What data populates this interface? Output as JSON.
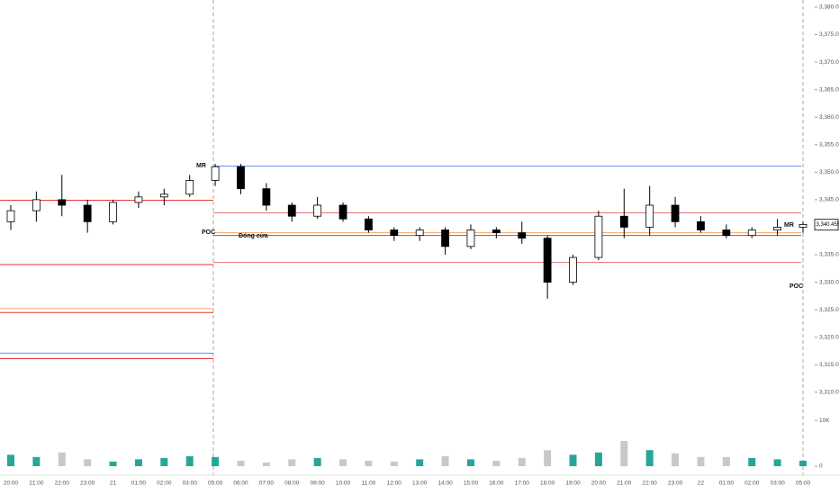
{
  "chart_data": {
    "type": "candlestick",
    "categories": [
      "20:00",
      "21:00",
      "22:00",
      "23:00",
      "21",
      "01:00",
      "02:00",
      "03:00",
      "05:00",
      "06:00",
      "07:00",
      "08:00",
      "09:00",
      "10:00",
      "11:00",
      "12:00",
      "13:00",
      "14:00",
      "15:00",
      "16:00",
      "17:00",
      "18:00",
      "19:00",
      "20:00",
      "21:00",
      "22:00",
      "23:00",
      "22",
      "01:00",
      "02:00",
      "03:00",
      "05:00"
    ],
    "open": [
      3341,
      3343,
      3345,
      3344,
      3341,
      3344.5,
      3345.5,
      3346,
      3348.5,
      3351,
      3347,
      3344,
      3342,
      3344,
      3341.5,
      3339.5,
      3338.5,
      3339.5,
      3336.5,
      3339.5,
      3339,
      3338,
      3330,
      3334.5,
      3342,
      3340,
      3344,
      3341,
      3339.5,
      3338.5,
      3339.5,
      3340
    ],
    "high": [
      3344,
      3346.5,
      3349.5,
      3345,
      3345,
      3346.5,
      3347,
      3349.5,
      3351.5,
      3351.5,
      3348,
      3344.5,
      3345.5,
      3344.5,
      3342,
      3340,
      3340,
      3340,
      3340.5,
      3340,
      3341,
      3338.5,
      3335,
      3343,
      3347,
      3347.5,
      3345.5,
      3342,
      3340.5,
      3340,
      3341.5,
      3341
    ],
    "low": [
      3339.5,
      3341,
      3342,
      3339,
      3340.5,
      3343.5,
      3344,
      3345.5,
      3347.5,
      3346,
      3343,
      3341,
      3341.5,
      3341,
      3339,
      3337.5,
      3337.5,
      3335,
      3336,
      3338,
      3337,
      3327,
      3329.5,
      3334,
      3338,
      3338.5,
      3340,
      3339,
      3338,
      3338,
      3338.5,
      3339
    ],
    "close": [
      3343,
      3345,
      3344,
      3341,
      3344.5,
      3345.5,
      3346,
      3348.5,
      3351,
      3347,
      3344,
      3342,
      3344,
      3341.5,
      3339.5,
      3338.5,
      3339.5,
      3336.5,
      3339.5,
      3339,
      3338,
      3330,
      3334.5,
      3342,
      3340,
      3344,
      3341,
      3339.5,
      3338.5,
      3339.5,
      3340,
      3340.5
    ],
    "volume": [
      2500,
      2000,
      3000,
      1500,
      1000,
      1500,
      1800,
      2200,
      2000,
      1200,
      800,
      1500,
      1800,
      1500,
      1200,
      1000,
      1500,
      2200,
      1500,
      1200,
      1800,
      3500,
      2500,
      3000,
      5500,
      3500,
      2800,
      2000,
      2000,
      1800,
      1500,
      1200
    ],
    "up_color": "#ffffff",
    "down_color": "#000000",
    "volume_up_color": "#26a69a",
    "volume_down_color": "#c8c8c8",
    "ylim": [
      3308.5,
      3381.3
    ],
    "yticks": [
      {
        "value": 3310,
        "label": "3,310.000"
      },
      {
        "value": 3315,
        "label": "3,315.000"
      },
      {
        "value": 3320,
        "label": "3,320.000"
      },
      {
        "value": 3325,
        "label": "3,325.000"
      },
      {
        "value": 3330,
        "label": "3,330.000"
      },
      {
        "value": 3335,
        "label": "3,335.000"
      },
      {
        "value": 3345,
        "label": "3,345.000"
      },
      {
        "value": 3350,
        "label": "3,350.000"
      },
      {
        "value": 3355,
        "label": "3,355.000"
      },
      {
        "value": 3360,
        "label": "3,360.000"
      },
      {
        "value": 3365,
        "label": "3,365.000"
      },
      {
        "value": 3370,
        "label": "3,370.000"
      },
      {
        "value": 3375,
        "label": "3,375.000"
      },
      {
        "value": 3380,
        "label": "3,380.000"
      }
    ],
    "vlim": [
      0,
      12000
    ],
    "vticks": [
      {
        "value": 0,
        "label": "0"
      },
      {
        "value": 10000,
        "label": "10K"
      }
    ],
    "last_price": {
      "value": 3340.455,
      "label": "3,340.455"
    },
    "levels": [
      {
        "value": 3344.9,
        "color": "#e53935",
        "extent": "left"
      },
      {
        "value": 3333.2,
        "color": "#e53935",
        "extent": "left"
      },
      {
        "value": 3325.2,
        "color": "#f4a460",
        "extent": "left"
      },
      {
        "value": 3324.5,
        "color": "#e53935",
        "extent": "left"
      },
      {
        "value": 3317.1,
        "color": "#5b8def",
        "extent": "left"
      },
      {
        "value": 3316.1,
        "color": "#e53935",
        "extent": "left"
      },
      {
        "value": 3351.1,
        "color": "#5b8def",
        "extent": "right"
      },
      {
        "value": 3342.6,
        "color": "#e57373",
        "extent": "right"
      },
      {
        "value": 3339.0,
        "color": "#f4a460",
        "extent": "right"
      },
      {
        "value": 3338.5,
        "color": "#e53935",
        "extent": "right"
      },
      {
        "value": 3333.6,
        "color": "#e57373",
        "extent": "right"
      }
    ],
    "annotations": [
      "MR",
      "POC",
      "Đóng cửa",
      "MR",
      "POC"
    ]
  }
}
